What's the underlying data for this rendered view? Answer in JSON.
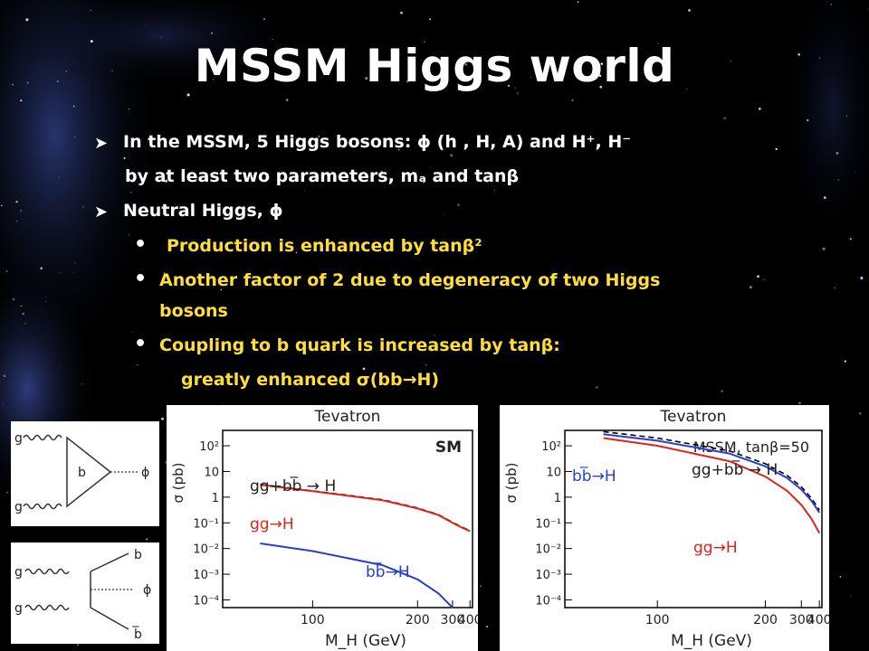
{
  "slide": {
    "title": "MSSM Higgs world",
    "bullets": [
      {
        "text": "In the MSSM, 5 Higgs bosons: ϕ (h , H, A) and H⁺, H⁻"
      },
      {
        "text": "by at least two parameters, mₐ and tanβ"
      },
      {
        "text": "Neutral Higgs, ϕ"
      },
      {
        "text": "Production is enhanced by tanβ²"
      },
      {
        "text": "Another factor of 2 due to degeneracy of two Higgs"
      },
      {
        "text": "bosons"
      },
      {
        "text": "Coupling to b quark is increased by tanβ:"
      },
      {
        "text": "greatly enhanced σ(bb→H)"
      }
    ],
    "colors": {
      "yellow": "#ffde3a",
      "red": "#e0241c",
      "blue": "#2a3fc8"
    }
  },
  "diagrams": {
    "top": {
      "g1": "g",
      "g2": "g",
      "loop": "b",
      "out": "ϕ"
    },
    "bottom": {
      "g1": "g",
      "g2": "g",
      "b": "b",
      "bbar": "b̅",
      "out": "ϕ"
    }
  },
  "chart_data": [
    {
      "type": "line",
      "title": "Tevatron",
      "annotation": "SM",
      "xlabel": "M_H (GeV)",
      "ylabel": "σ (pb)",
      "x_ticks": [
        "100",
        "200",
        "300",
        "400"
      ],
      "y_ticks": [
        "10²",
        "10",
        "1",
        "10⁻¹",
        "10⁻²",
        "10⁻³",
        "10⁻⁴"
      ],
      "xlim": [
        70,
        420
      ],
      "ylim_log10": [
        -4.3,
        2.6
      ],
      "x_scale": "reciprocal",
      "series": [
        {
          "name": "gg+bb̅ → H",
          "color": "#000000",
          "style": "dashed",
          "x": [
            80,
            100,
            150,
            200,
            250,
            300,
            350,
            400
          ],
          "log10_y": [
            0.5,
            0.25,
            -0.1,
            -0.42,
            -0.68,
            -0.98,
            -1.18,
            -1.3
          ]
        },
        {
          "name": "gg→H",
          "color": "#e0241c",
          "style": "solid",
          "x": [
            80,
            100,
            150,
            200,
            250,
            300,
            350,
            400
          ],
          "log10_y": [
            0.48,
            0.23,
            -0.12,
            -0.44,
            -0.7,
            -1.0,
            -1.2,
            -1.32
          ]
        },
        {
          "name": "bb̅→H",
          "color": "#2a3fc8",
          "style": "solid",
          "x": [
            80,
            100,
            150,
            200,
            250,
            300
          ],
          "log10_y": [
            -1.8,
            -2.1,
            -2.65,
            -3.2,
            -3.75,
            -4.3
          ]
        }
      ]
    },
    {
      "type": "line",
      "title": "Tevatron",
      "annotation": "MSSM, tanβ=50",
      "xlabel": "M_H (GeV)",
      "ylabel": "σ (pb)",
      "x_ticks": [
        "100",
        "200",
        "300",
        "400"
      ],
      "y_ticks": [
        "10²",
        "10",
        "1",
        "10⁻¹",
        "10⁻²",
        "10⁻³",
        "10⁻⁴"
      ],
      "xlim": [
        70,
        420
      ],
      "ylim_log10": [
        -4.3,
        2.6
      ],
      "x_scale": "reciprocal",
      "series": [
        {
          "name": "gg+bb̅ → H",
          "color": "#000000",
          "style": "dashed",
          "x": [
            80,
            100,
            150,
            200,
            250,
            300,
            350,
            400
          ],
          "log10_y": [
            2.55,
            2.3,
            1.8,
            1.3,
            0.85,
            0.4,
            -0.05,
            -0.5
          ]
        },
        {
          "name": "bb̅→H",
          "color": "#2a3fc8",
          "style": "solid",
          "x": [
            80,
            100,
            150,
            200,
            250,
            300,
            350,
            400
          ],
          "log10_y": [
            2.45,
            2.2,
            1.7,
            1.2,
            0.75,
            0.3,
            -0.15,
            -0.6
          ]
        },
        {
          "name": "gg→H",
          "color": "#e0241c",
          "style": "solid",
          "x": [
            80,
            100,
            150,
            200,
            250,
            300,
            350,
            400
          ],
          "log10_y": [
            2.3,
            2.0,
            1.4,
            0.8,
            0.25,
            -0.3,
            -0.85,
            -1.4
          ]
        }
      ]
    }
  ]
}
